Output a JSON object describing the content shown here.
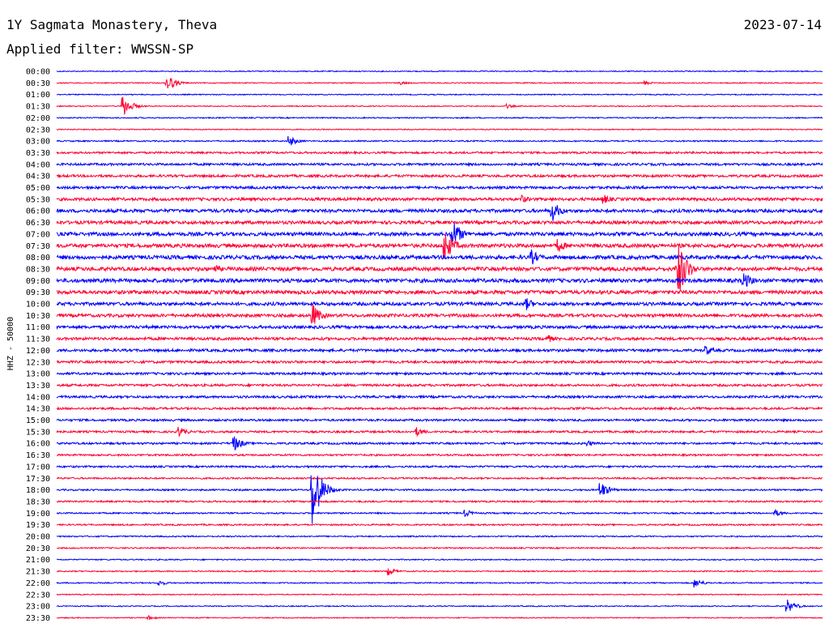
{
  "chart_data": {
    "type": "line",
    "title": "1Y Sagmata Monastery, Theva",
    "date": "2023-07-14",
    "filter_label": "Applied filter: WWSSN-SP",
    "ylabel": "HHZ - 50000",
    "xlabel": "",
    "grid": false,
    "colors": [
      "#0000ff",
      "#ff0033"
    ],
    "row_labels": [
      "00:00",
      "00:30",
      "01:00",
      "01:30",
      "02:00",
      "02:30",
      "03:00",
      "03:30",
      "04:00",
      "04:30",
      "05:00",
      "05:30",
      "06:00",
      "06:30",
      "07:00",
      "07:30",
      "08:00",
      "08:30",
      "09:00",
      "09:30",
      "10:00",
      "10:30",
      "11:00",
      "11:30",
      "12:00",
      "12:30",
      "13:00",
      "13:30",
      "14:00",
      "14:30",
      "15:00",
      "15:30",
      "16:00",
      "16:30",
      "17:00",
      "17:30",
      "18:00",
      "18:30",
      "19:00",
      "19:30",
      "20:00",
      "20:30",
      "21:00",
      "21:30",
      "22:00",
      "22:30",
      "23:00",
      "23:30"
    ],
    "noise_levels": [
      0.6,
      0.6,
      0.6,
      0.6,
      0.7,
      0.6,
      0.8,
      1.2,
      1.4,
      1.5,
      1.6,
      1.8,
      2.0,
      2.0,
      2.2,
      2.3,
      2.3,
      2.3,
      2.3,
      2.2,
      2.0,
      1.9,
      1.8,
      1.7,
      1.6,
      1.5,
      1.4,
      1.4,
      1.4,
      1.3,
      1.3,
      1.2,
      1.2,
      1.1,
      1.1,
      1.0,
      1.0,
      1.0,
      0.9,
      0.9,
      0.8,
      0.8,
      0.7,
      0.7,
      0.7,
      0.6,
      0.6,
      0.6
    ],
    "events": [
      {
        "row": 1,
        "minute": 4.3,
        "amplitude": 12
      },
      {
        "row": 1,
        "minute": 13.4,
        "amplitude": 3
      },
      {
        "row": 1,
        "minute": 23.0,
        "amplitude": 3
      },
      {
        "row": 3,
        "minute": 2.6,
        "amplitude": 14
      },
      {
        "row": 3,
        "minute": 17.6,
        "amplitude": 3
      },
      {
        "row": 6,
        "minute": 9.1,
        "amplitude": 7
      },
      {
        "row": 11,
        "minute": 18.2,
        "amplitude": 6
      },
      {
        "row": 11,
        "minute": 21.4,
        "amplitude": 7
      },
      {
        "row": 12,
        "minute": 19.4,
        "amplitude": 14
      },
      {
        "row": 14,
        "minute": 15.5,
        "amplitude": 20
      },
      {
        "row": 15,
        "minute": 15.2,
        "amplitude": 22
      },
      {
        "row": 15,
        "minute": 19.6,
        "amplitude": 10
      },
      {
        "row": 16,
        "minute": 18.6,
        "amplitude": 10
      },
      {
        "row": 17,
        "minute": 6.2,
        "amplitude": 6
      },
      {
        "row": 17,
        "minute": 24.3,
        "amplitude": 45
      },
      {
        "row": 18,
        "minute": 26.9,
        "amplitude": 12
      },
      {
        "row": 20,
        "minute": 18.4,
        "amplitude": 8
      },
      {
        "row": 21,
        "minute": 10.0,
        "amplitude": 16
      },
      {
        "row": 23,
        "minute": 19.2,
        "amplitude": 6
      },
      {
        "row": 24,
        "minute": 25.4,
        "amplitude": 7
      },
      {
        "row": 31,
        "minute": 4.8,
        "amplitude": 7
      },
      {
        "row": 31,
        "minute": 14.1,
        "amplitude": 6
      },
      {
        "row": 32,
        "minute": 6.9,
        "amplitude": 12
      },
      {
        "row": 32,
        "minute": 20.8,
        "amplitude": 4
      },
      {
        "row": 36,
        "minute": 10.0,
        "amplitude": 50
      },
      {
        "row": 36,
        "minute": 21.3,
        "amplitude": 11
      },
      {
        "row": 38,
        "minute": 16.0,
        "amplitude": 5
      },
      {
        "row": 38,
        "minute": 28.1,
        "amplitude": 5
      },
      {
        "row": 43,
        "minute": 13.0,
        "amplitude": 5
      },
      {
        "row": 44,
        "minute": 4.0,
        "amplitude": 4
      },
      {
        "row": 44,
        "minute": 25.0,
        "amplitude": 6
      },
      {
        "row": 46,
        "minute": 28.6,
        "amplitude": 9
      },
      {
        "row": 47,
        "minute": 3.6,
        "amplitude": 3
      }
    ]
  }
}
